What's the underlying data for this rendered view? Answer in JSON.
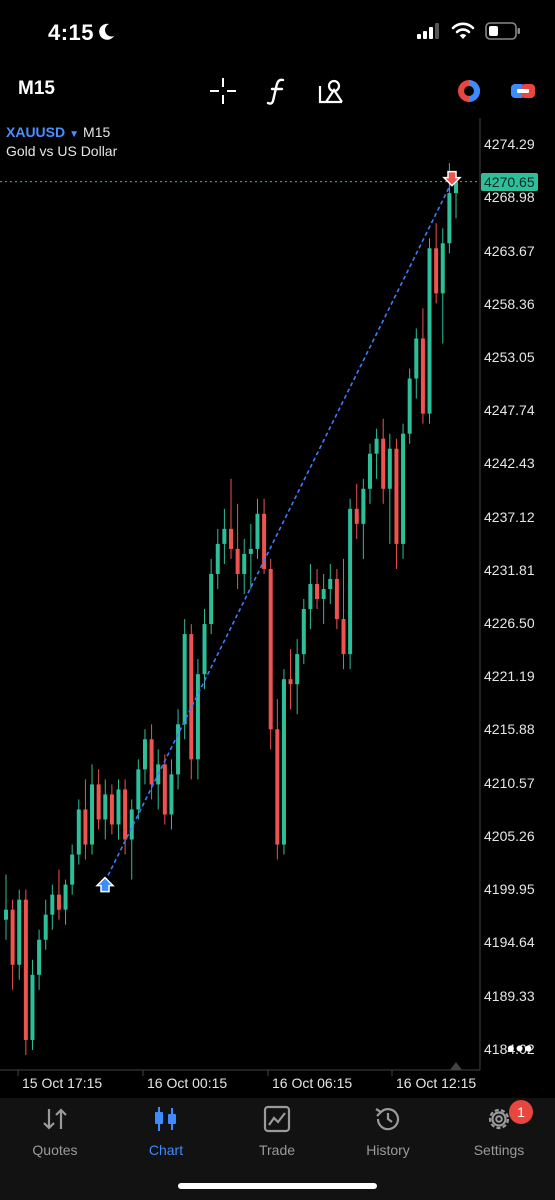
{
  "status": {
    "time": "4:15"
  },
  "toolbar": {
    "timeframe": "M15",
    "icons": [
      "crosshair-icon",
      "indicator-f-icon",
      "objects-icon",
      "sync-icon",
      "chain-link-icon"
    ]
  },
  "chart": {
    "symbol": "XAUUSD",
    "timeframe": "M15",
    "description": "Gold vs US Dollar",
    "current_price": "4270.65",
    "price_labels": [
      "4274.29",
      "4268.98",
      "4263.67",
      "4258.36",
      "4253.05",
      "4247.74",
      "4242.43",
      "4237.12",
      "4231.81",
      "4226.50",
      "4221.19",
      "4215.88",
      "4210.57",
      "4205.26",
      "4199.95",
      "4194.64",
      "4189.33",
      "4184.02"
    ],
    "time_labels": [
      "15 Oct 17:15",
      "16 Oct 00:15",
      "16 Oct 06:15",
      "16 Oct 12:15"
    ],
    "colors": {
      "bull": "#2dbf9a",
      "bear": "#ef5350",
      "trade_line": "#3d7bff",
      "buy_arrow": "#3d8bff",
      "sell_arrow": "#ef5350"
    }
  },
  "chart_data": {
    "type": "candlestick",
    "ylim": [
      4182.0,
      4277.0
    ],
    "trade_line": {
      "buy_price": 4200.8,
      "sell_price": 4270.65
    },
    "candles": [
      [
        4197.0,
        4201.5,
        4195.0,
        4198.0
      ],
      [
        4198.0,
        4199.0,
        4190.0,
        4192.5
      ],
      [
        4192.5,
        4200.0,
        4191.0,
        4199.0
      ],
      [
        4199.0,
        4200.0,
        4183.5,
        4185.0
      ],
      [
        4185.0,
        4193.0,
        4184.0,
        4191.5
      ],
      [
        4191.5,
        4196.0,
        4190.0,
        4195.0
      ],
      [
        4195.0,
        4199.0,
        4194.0,
        4197.5
      ],
      [
        4197.5,
        4200.5,
        4196.0,
        4199.5
      ],
      [
        4199.5,
        4202.0,
        4197.0,
        4198.0
      ],
      [
        4198.0,
        4201.0,
        4196.5,
        4200.5
      ],
      [
        4200.5,
        4204.5,
        4199.5,
        4203.5
      ],
      [
        4203.5,
        4209.0,
        4202.5,
        4208.0
      ],
      [
        4208.0,
        4211.0,
        4203.0,
        4204.5
      ],
      [
        4204.5,
        4212.5,
        4203.5,
        4210.5
      ],
      [
        4210.5,
        4212.0,
        4206.0,
        4207.0
      ],
      [
        4207.0,
        4211.0,
        4205.0,
        4209.5
      ],
      [
        4209.5,
        4210.5,
        4205.5,
        4206.5
      ],
      [
        4206.5,
        4211.0,
        4205.0,
        4210.0
      ],
      [
        4210.0,
        4211.0,
        4203.5,
        4205.0
      ],
      [
        4205.0,
        4209.0,
        4201.0,
        4208.0
      ],
      [
        4208.0,
        4213.0,
        4207.0,
        4212.0
      ],
      [
        4212.0,
        4216.0,
        4210.5,
        4215.0
      ],
      [
        4215.0,
        4216.5,
        4209.0,
        4210.5
      ],
      [
        4210.5,
        4214.0,
        4208.0,
        4212.5
      ],
      [
        4212.5,
        4213.5,
        4206.5,
        4207.5
      ],
      [
        4207.5,
        4213.0,
        4206.0,
        4211.5
      ],
      [
        4211.5,
        4218.0,
        4210.0,
        4216.5
      ],
      [
        4216.5,
        4227.0,
        4215.0,
        4225.5
      ],
      [
        4225.5,
        4226.5,
        4211.0,
        4213.0
      ],
      [
        4213.0,
        4223.0,
        4211.0,
        4221.5
      ],
      [
        4221.5,
        4228.0,
        4220.0,
        4226.5
      ],
      [
        4226.5,
        4233.0,
        4225.5,
        4231.5
      ],
      [
        4231.5,
        4236.0,
        4230.0,
        4234.5
      ],
      [
        4234.5,
        4238.0,
        4232.5,
        4236.0
      ],
      [
        4236.0,
        4241.0,
        4233.0,
        4234.0
      ],
      [
        4234.0,
        4238.5,
        4230.0,
        4231.5
      ],
      [
        4231.5,
        4235.0,
        4229.5,
        4233.5
      ],
      [
        4233.5,
        4236.5,
        4230.0,
        4234.0
      ],
      [
        4234.0,
        4239.0,
        4233.0,
        4237.5
      ],
      [
        4237.5,
        4239.0,
        4231.5,
        4232.0
      ],
      [
        4232.0,
        4233.0,
        4214.0,
        4216.0
      ],
      [
        4216.0,
        4219.0,
        4203.0,
        4204.5
      ],
      [
        4204.5,
        4222.0,
        4203.5,
        4221.0
      ],
      [
        4221.0,
        4224.0,
        4218.0,
        4220.5
      ],
      [
        4220.5,
        4225.0,
        4217.5,
        4223.5
      ],
      [
        4223.5,
        4229.0,
        4222.5,
        4228.0
      ],
      [
        4228.0,
        4232.5,
        4226.0,
        4230.5
      ],
      [
        4230.5,
        4232.0,
        4228.0,
        4229.0
      ],
      [
        4229.0,
        4231.5,
        4226.5,
        4230.0
      ],
      [
        4230.0,
        4232.5,
        4228.5,
        4231.0
      ],
      [
        4231.0,
        4232.0,
        4226.0,
        4227.0
      ],
      [
        4227.0,
        4233.0,
        4222.0,
        4223.5
      ],
      [
        4223.5,
        4239.0,
        4222.0,
        4238.0
      ],
      [
        4238.0,
        4240.5,
        4235.0,
        4236.5
      ],
      [
        4236.5,
        4241.0,
        4233.0,
        4240.0
      ],
      [
        4240.0,
        4244.5,
        4238.5,
        4243.5
      ],
      [
        4243.5,
        4246.0,
        4241.0,
        4245.0
      ],
      [
        4245.0,
        4247.0,
        4238.5,
        4240.0
      ],
      [
        4240.0,
        4245.5,
        4234.5,
        4244.0
      ],
      [
        4244.0,
        4245.0,
        4232.0,
        4234.5
      ],
      [
        4234.5,
        4246.5,
        4233.0,
        4245.5
      ],
      [
        4245.5,
        4252.0,
        4244.5,
        4251.0
      ],
      [
        4251.0,
        4256.0,
        4249.0,
        4255.0
      ],
      [
        4255.0,
        4258.0,
        4246.5,
        4247.5
      ],
      [
        4247.5,
        4265.0,
        4246.5,
        4264.0
      ],
      [
        4264.0,
        4266.5,
        4258.5,
        4259.5
      ],
      [
        4259.5,
        4266.0,
        4254.5,
        4264.5
      ],
      [
        4264.5,
        4272.5,
        4263.5,
        4269.5
      ],
      [
        4269.5,
        4271.5,
        4267.0,
        4270.65
      ]
    ]
  },
  "tabs": [
    {
      "label": "Quotes",
      "icon": "quotes-arrows-icon",
      "active": false
    },
    {
      "label": "Chart",
      "icon": "candles-icon",
      "active": true
    },
    {
      "label": "Trade",
      "icon": "trade-chart-icon",
      "active": false
    },
    {
      "label": "History",
      "icon": "history-clock-icon",
      "active": false
    },
    {
      "label": "Settings",
      "icon": "settings-gear-icon",
      "active": false,
      "badge": "1"
    }
  ]
}
